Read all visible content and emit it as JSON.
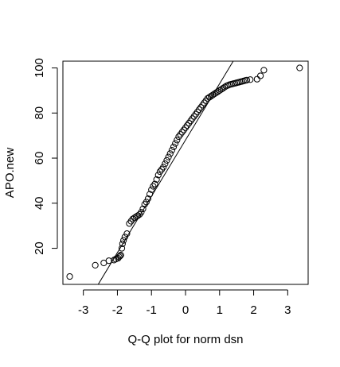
{
  "chart_data": {
    "type": "scatter",
    "title": "",
    "xlabel": "Q-Q plot for norm dsn",
    "ylabel": "APO.new",
    "xlim": [
      -3.6,
      3.6
    ],
    "ylim": [
      4,
      103
    ],
    "x_ticks": [
      -3,
      -2,
      -1,
      0,
      1,
      2,
      3
    ],
    "y_ticks": [
      20,
      40,
      60,
      80,
      100
    ],
    "grid": false,
    "legend": "none",
    "colors": {
      "points": "#000000",
      "line": "#000000",
      "axes": "#000000"
    },
    "reference_line": {
      "type": "qqline",
      "x": [
        -2.6,
        1.4
      ],
      "y": [
        3.1,
        103
      ]
    },
    "series": [
      {
        "marker": "open-circle",
        "x": [
          -3.4,
          -2.65,
          -2.4,
          -2.25,
          -2.1,
          -2.05,
          -1.98,
          -1.95,
          -1.92,
          -1.9,
          -1.87,
          -1.85,
          -1.82,
          -1.78,
          -1.72,
          -1.65,
          -1.6,
          -1.55,
          -1.5,
          -1.45,
          -1.4,
          -1.35,
          -1.3,
          -1.25,
          -1.2,
          -1.15,
          -1.1,
          -1.05,
          -1.0,
          -0.95,
          -0.9,
          -0.85,
          -0.8,
          -0.75,
          -0.7,
          -0.65,
          -0.6,
          -0.55,
          -0.5,
          -0.45,
          -0.4,
          -0.35,
          -0.3,
          -0.25,
          -0.2,
          -0.15,
          -0.1,
          -0.05,
          0.0,
          0.05,
          0.1,
          0.15,
          0.2,
          0.25,
          0.3,
          0.35,
          0.4,
          0.45,
          0.5,
          0.55,
          0.6,
          0.65,
          0.7,
          0.75,
          0.8,
          0.85,
          0.9,
          0.95,
          1.0,
          1.05,
          1.1,
          1.15,
          1.2,
          1.25,
          1.3,
          1.35,
          1.4,
          1.45,
          1.5,
          1.55,
          1.6,
          1.65,
          1.7,
          1.75,
          1.8,
          1.9,
          2.1,
          2.2,
          2.3,
          3.35
        ],
        "y": [
          7.5,
          12.5,
          13.5,
          14.5,
          14.8,
          15.2,
          15.6,
          16.2,
          16.6,
          17,
          20,
          22,
          23.5,
          25,
          26.5,
          31,
          32,
          33,
          33.5,
          34,
          34.5,
          35,
          36,
          37.5,
          39.5,
          40.5,
          42,
          44,
          46,
          47.5,
          48.5,
          50.5,
          52.5,
          54,
          55,
          56,
          57.5,
          59,
          60.5,
          62,
          63.5,
          65,
          66.5,
          68,
          69.5,
          70.5,
          71.5,
          72.5,
          73.5,
          74.5,
          75.5,
          76.5,
          77.5,
          78.5,
          79.5,
          80.5,
          81.5,
          82.5,
          83.5,
          84.5,
          85.5,
          86.5,
          87,
          87.5,
          88,
          88.5,
          89,
          89.5,
          90,
          90.5,
          91,
          91.5,
          92,
          92.3,
          92.6,
          92.8,
          93,
          93.2,
          93.4,
          93.6,
          93.8,
          94,
          94.2,
          94.4,
          94.6,
          94.8,
          95,
          96.5,
          99,
          100
        ]
      }
    ]
  }
}
